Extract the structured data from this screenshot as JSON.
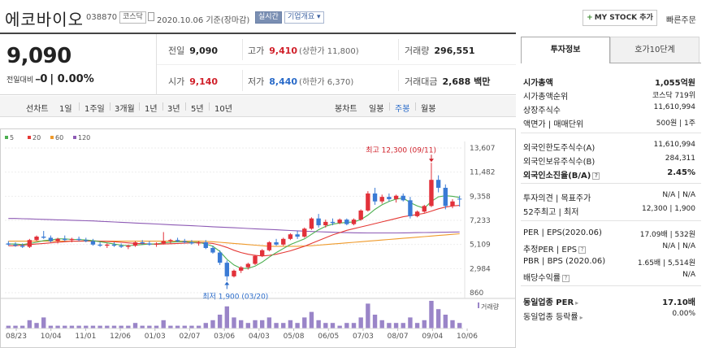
{
  "header": {
    "name": "에코바이오",
    "code": "038870",
    "market": "코스닥",
    "date_label": "2020.10.06 기준(장마감)",
    "live_label": "실시간",
    "info_label": "기업개요",
    "mystock_label": "MY STOCK 추가",
    "quick_order_label": "빠른주문"
  },
  "summary": {
    "price": "9,090",
    "change_label": "전일대비",
    "change_value": "0",
    "change_rate": "0.00%",
    "prev_label": "전일",
    "prev_value": "9,090",
    "high_label": "고가",
    "high_value": "9,410",
    "high_sub": "(상한가 11,800)",
    "volume_label": "거래량",
    "volume_value": "296,551",
    "open_label": "시가",
    "open_value": "9,140",
    "low_label": "저가",
    "low_value": "8,440",
    "low_sub": "(하한가 6,370)",
    "amount_label": "거래대금",
    "amount_value": "2,688 백만"
  },
  "period_tabs": {
    "line_label": "선차트",
    "periods": [
      "1일",
      "1주일",
      "3개월",
      "1년",
      "3년",
      "5년",
      "10년"
    ],
    "candle_label": "봉차트",
    "candles": [
      "일봉",
      "주봉",
      "월봉"
    ],
    "active_candle": "주봉"
  },
  "chart_data": {
    "type": "candlestick",
    "legend": [
      {
        "name": "5",
        "color": "#4caf50"
      },
      {
        "name": "20",
        "color": "#e53935"
      },
      {
        "name": "60",
        "color": "#ef9a2b"
      },
      {
        "name": "120",
        "color": "#8e5bb5"
      }
    ],
    "y_ticks": [
      "13,607",
      "11,482",
      "9,358",
      "7,233",
      "5,109",
      "2,984",
      "860"
    ],
    "ylim": [
      860,
      13607
    ],
    "x_ticks": [
      "08/23",
      "10/04",
      "11/01",
      "12/06",
      "01/03",
      "02/07",
      "03/06",
      "04/03",
      "05/08",
      "06/05",
      "07/03",
      "08/07",
      "09/04",
      "10/06"
    ],
    "annotations": {
      "high": "최고 12,300 (09/11)",
      "low": "최저 1,900 (03/20)"
    },
    "volume_label": "거래량",
    "candles": [
      [
        5200,
        5400,
        5000,
        5100
      ],
      [
        5100,
        5300,
        4900,
        5000
      ],
      [
        5000,
        5200,
        4800,
        4900
      ],
      [
        4900,
        5600,
        4800,
        5500
      ],
      [
        5500,
        5900,
        5400,
        5800
      ],
      [
        5800,
        6300,
        5600,
        5700
      ],
      [
        5700,
        5900,
        5300,
        5400
      ],
      [
        5400,
        5700,
        5200,
        5600
      ],
      [
        5600,
        5900,
        5400,
        5500
      ],
      [
        5500,
        5700,
        5300,
        5600
      ],
      [
        5600,
        5800,
        5400,
        5500
      ],
      [
        5500,
        5700,
        5300,
        5400
      ],
      [
        5400,
        5600,
        5000,
        5100
      ],
      [
        5100,
        5300,
        4900,
        5000
      ],
      [
        5000,
        5200,
        4800,
        5100
      ],
      [
        5100,
        5300,
        4900,
        5000
      ],
      [
        5000,
        5200,
        4800,
        4900
      ],
      [
        4900,
        5100,
        4700,
        5000
      ],
      [
        5000,
        5400,
        4900,
        5300
      ],
      [
        5300,
        5500,
        5100,
        5200
      ],
      [
        5200,
        5400,
        5000,
        5100
      ],
      [
        5100,
        5300,
        4900,
        5200
      ],
      [
        5200,
        6200,
        5100,
        5400
      ],
      [
        5400,
        5600,
        5200,
        5500
      ],
      [
        5500,
        5700,
        5300,
        5400
      ],
      [
        5400,
        5600,
        5200,
        5300
      ],
      [
        5300,
        5500,
        5100,
        5200
      ],
      [
        5200,
        5400,
        5000,
        5300
      ],
      [
        5300,
        5500,
        4700,
        4800
      ],
      [
        4800,
        5000,
        4300,
        4400
      ],
      [
        4400,
        4600,
        3300,
        3500
      ],
      [
        3500,
        3700,
        1900,
        2300
      ],
      [
        2300,
        2900,
        2200,
        2800
      ],
      [
        2800,
        3200,
        2600,
        3100
      ],
      [
        3100,
        3500,
        2900,
        3400
      ],
      [
        3400,
        4200,
        3300,
        4100
      ],
      [
        4100,
        4700,
        4000,
        4600
      ],
      [
        4600,
        5400,
        4500,
        5300
      ],
      [
        5300,
        5600,
        5000,
        5100
      ],
      [
        5100,
        5700,
        5000,
        5600
      ],
      [
        5600,
        6100,
        5500,
        6000
      ],
      [
        6000,
        6300,
        5600,
        5800
      ],
      [
        5800,
        6600,
        5700,
        6500
      ],
      [
        6500,
        7500,
        6400,
        7400
      ],
      [
        7400,
        7800,
        6600,
        6800
      ],
      [
        6800,
        7300,
        6600,
        7100
      ],
      [
        7100,
        7400,
        6800,
        7000
      ],
      [
        7000,
        7400,
        6900,
        7300
      ],
      [
        7300,
        7400,
        6800,
        6900
      ],
      [
        6900,
        7400,
        6800,
        7300
      ],
      [
        7300,
        8200,
        7200,
        8100
      ],
      [
        8100,
        9800,
        8000,
        9600
      ],
      [
        9600,
        10100,
        8600,
        8900
      ],
      [
        8900,
        9500,
        8700,
        9300
      ],
      [
        9300,
        9600,
        8900,
        9100
      ],
      [
        9100,
        9500,
        8800,
        9400
      ],
      [
        9400,
        9600,
        8900,
        9000
      ],
      [
        9000,
        9300,
        7400,
        7600
      ],
      [
        7600,
        8100,
        7500,
        8000
      ],
      [
        8000,
        8600,
        7900,
        8500
      ],
      [
        8500,
        12300,
        8400,
        10800
      ],
      [
        10800,
        11200,
        9700,
        10100
      ],
      [
        10100,
        10400,
        8200,
        8500
      ],
      [
        8500,
        9100,
        8300,
        8900
      ],
      [
        9140,
        9410,
        8440,
        9090
      ]
    ],
    "volumes": [
      1,
      1,
      1,
      3,
      2,
      4,
      1,
      1,
      1,
      1,
      1,
      1,
      1,
      1,
      1,
      1,
      1,
      1,
      2,
      1,
      1,
      1,
      3,
      1,
      1,
      1,
      1,
      1,
      2,
      3,
      5,
      8,
      4,
      3,
      2,
      3,
      3,
      4,
      2,
      2,
      3,
      2,
      4,
      6,
      3,
      2,
      2,
      1,
      2,
      2,
      4,
      9,
      5,
      3,
      2,
      2,
      2,
      4,
      2,
      3,
      10,
      7,
      5,
      3,
      2
    ],
    "ma": {
      "5": [
        5150,
        5150,
        5100,
        5200,
        5300,
        5450,
        5500,
        5600,
        5600,
        5550,
        5550,
        5500,
        5450,
        5350,
        5250,
        5150,
        5050,
        5000,
        5050,
        5100,
        5150,
        5150,
        5250,
        5300,
        5350,
        5350,
        5300,
        5300,
        5150,
        4950,
        4500,
        3800,
        3300,
        3000,
        3000,
        3200,
        3550,
        4000,
        4400,
        4750,
        5100,
        5350,
        5600,
        6000,
        6400,
        6700,
        6900,
        7000,
        7050,
        7100,
        7300,
        7700,
        8200,
        8600,
        8900,
        9100,
        9200,
        8800,
        8500,
        8300,
        8900,
        9300,
        9400,
        9350,
        9250
      ],
      "20": [
        5000,
        5000,
        5050,
        5100,
        5150,
        5200,
        5250,
        5300,
        5350,
        5400,
        5400,
        5420,
        5420,
        5400,
        5380,
        5350,
        5300,
        5250,
        5200,
        5180,
        5150,
        5130,
        5150,
        5170,
        5200,
        5220,
        5250,
        5270,
        5250,
        5200,
        5050,
        4850,
        4600,
        4400,
        4250,
        4150,
        4100,
        4150,
        4250,
        4400,
        4550,
        4750,
        4950,
        5200,
        5450,
        5700,
        5950,
        6150,
        6350,
        6500,
        6650,
        6800,
        6950,
        7100,
        7250,
        7400,
        7550,
        7650,
        7750,
        7850,
        8050,
        8250,
        8400,
        8500,
        8550
      ],
      "60": [
        5400,
        5400,
        5400,
        5400,
        5400,
        5400,
        5400,
        5400,
        5400,
        5400,
        5400,
        5400,
        5400,
        5400,
        5400,
        5400,
        5400,
        5400,
        5400,
        5400,
        5400,
        5400,
        5400,
        5400,
        5400,
        5400,
        5400,
        5400,
        5380,
        5350,
        5300,
        5250,
        5200,
        5150,
        5100,
        5050,
        5000,
        4950,
        4950,
        4950,
        4950,
        4950,
        4980,
        5000,
        5050,
        5100,
        5150,
        5200,
        5250,
        5300,
        5350,
        5400,
        5450,
        5500,
        5550,
        5600,
        5650,
        5700,
        5750,
        5800,
        5850,
        5900,
        5950,
        6000,
        6050
      ],
      "120": [
        7400,
        7400,
        7380,
        7360,
        7340,
        7320,
        7300,
        7280,
        7260,
        7240,
        7220,
        7200,
        7180,
        7150,
        7120,
        7090,
        7060,
        7030,
        7000,
        6970,
        6940,
        6910,
        6880,
        6850,
        6820,
        6790,
        6760,
        6730,
        6700,
        6670,
        6640,
        6610,
        6580,
        6550,
        6520,
        6490,
        6460,
        6430,
        6400,
        6370,
        6340,
        6310,
        6280,
        6250,
        6230,
        6210,
        6190,
        6170,
        6150,
        6140,
        6130,
        6120,
        6120,
        6120,
        6120,
        6120,
        6130,
        6140,
        6150,
        6160,
        6170,
        6180,
        6190,
        6200,
        6210
      ]
    }
  },
  "right_panel": {
    "tab_active": "투자정보",
    "tab_other": "호가10단계",
    "rows": [
      {
        "k": "시가총액",
        "v": "1,055억원",
        "bold": true
      },
      {
        "k": "시가총액순위",
        "v": "코스닥 719위"
      },
      {
        "k": "상장주식수",
        "v": "11,610,994"
      },
      {
        "k": "액면가 | 매매단위",
        "v": "500원 | 1주"
      },
      {
        "k": "외국인한도주식수(A)",
        "v": "11,610,994"
      },
      {
        "k": "외국인보유주식수(B)",
        "v": "284,311"
      },
      {
        "k": "외국인소진율(B/A)",
        "v": "2.45%",
        "bold": true
      },
      {
        "k": "투자의견 | 목표주가",
        "v": "N/A | N/A"
      },
      {
        "k": "52주최고 | 최저",
        "v": "12,300 | 1,900"
      },
      {
        "k": "PER | EPS(2020.06)",
        "v": "17.09배 | 532원"
      },
      {
        "k": "추정PER | EPS",
        "v": "N/A | N/A"
      },
      {
        "k": "PBR | BPS (2020.06)",
        "v": "1.65배 | 5,514원"
      },
      {
        "k": "배당수익률",
        "v": "N/A"
      },
      {
        "k": "동일업종 PER",
        "v": "17.10배",
        "bold": true
      },
      {
        "k": "동일업종 등락률",
        "v": "0.00%"
      }
    ]
  }
}
